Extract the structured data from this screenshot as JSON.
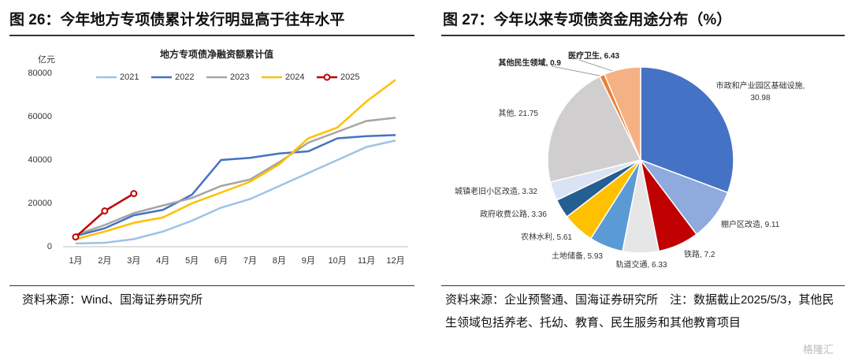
{
  "chart_data": [
    {
      "type": "line",
      "figure_title": "图 26：今年地方专项债累计发行明显高于往年水平",
      "title": "地方专项债净融资额累计值",
      "y_unit": "亿元",
      "categories": [
        "1月",
        "2月",
        "3月",
        "4月",
        "5月",
        "6月",
        "7月",
        "8月",
        "9月",
        "10月",
        "11月",
        "12月"
      ],
      "series": [
        {
          "name": "2021",
          "color": "#9dc3e6",
          "values": [
            1500,
            1800,
            3500,
            7000,
            12000,
            18000,
            22000,
            28000,
            34000,
            40000,
            46000,
            49000
          ]
        },
        {
          "name": "2022",
          "color": "#4472c4",
          "values": [
            5000,
            8500,
            14500,
            17000,
            24000,
            40000,
            41000,
            43000,
            44000,
            50000,
            51000,
            51500
          ]
        },
        {
          "name": "2023",
          "color": "#a5a5a5",
          "values": [
            5500,
            10000,
            15500,
            19000,
            22500,
            28000,
            31000,
            39000,
            48000,
            53000,
            58000,
            59500
          ]
        },
        {
          "name": "2024",
          "color": "#ffc000",
          "values": [
            3500,
            7000,
            11000,
            13500,
            20000,
            25000,
            30000,
            38000,
            50000,
            55000,
            67000,
            77000
          ]
        },
        {
          "name": "2025",
          "color": "#c00000",
          "marker": "circle",
          "values": [
            4500,
            16500,
            24500,
            null,
            null,
            null,
            null,
            null,
            null,
            null,
            null,
            null
          ]
        }
      ],
      "ylim": [
        0,
        80000
      ],
      "yticks": [
        0,
        20000,
        40000,
        60000,
        80000
      ],
      "legend": "top",
      "source": "资料来源：Wind、国海证券研究所"
    },
    {
      "type": "pie",
      "figure_title": "图 27：今年以来专项债资金用途分布（%）",
      "categories": [
        "市政和产业园区基础设施",
        "棚户区改造",
        "铁路",
        "轨道交通",
        "土地储备",
        "农林水利",
        "政府收费公路",
        "城镇老旧小区改造",
        "其他",
        "其他民生领域",
        "医疗卫生"
      ],
      "values": [
        30.98,
        9.11,
        7.2,
        6.33,
        5.93,
        5.61,
        3.36,
        3.32,
        21.75,
        0.9,
        6.43
      ],
      "colors": [
        "#4472c4",
        "#8faadc",
        "#c00000",
        "#e7e6e6",
        "#5b9bd5",
        "#ffc000",
        "#255e91",
        "#dae3f3",
        "#d0cece",
        "#ed7d31",
        "#f4b183"
      ],
      "source": "资料来源：企业预警通、国海证券研究所　注：数据截止2025/5/3，其他民生领域包括养老、托幼、教育、民生服务和其他教育项目"
    }
  ],
  "watermark": "格隆汇"
}
